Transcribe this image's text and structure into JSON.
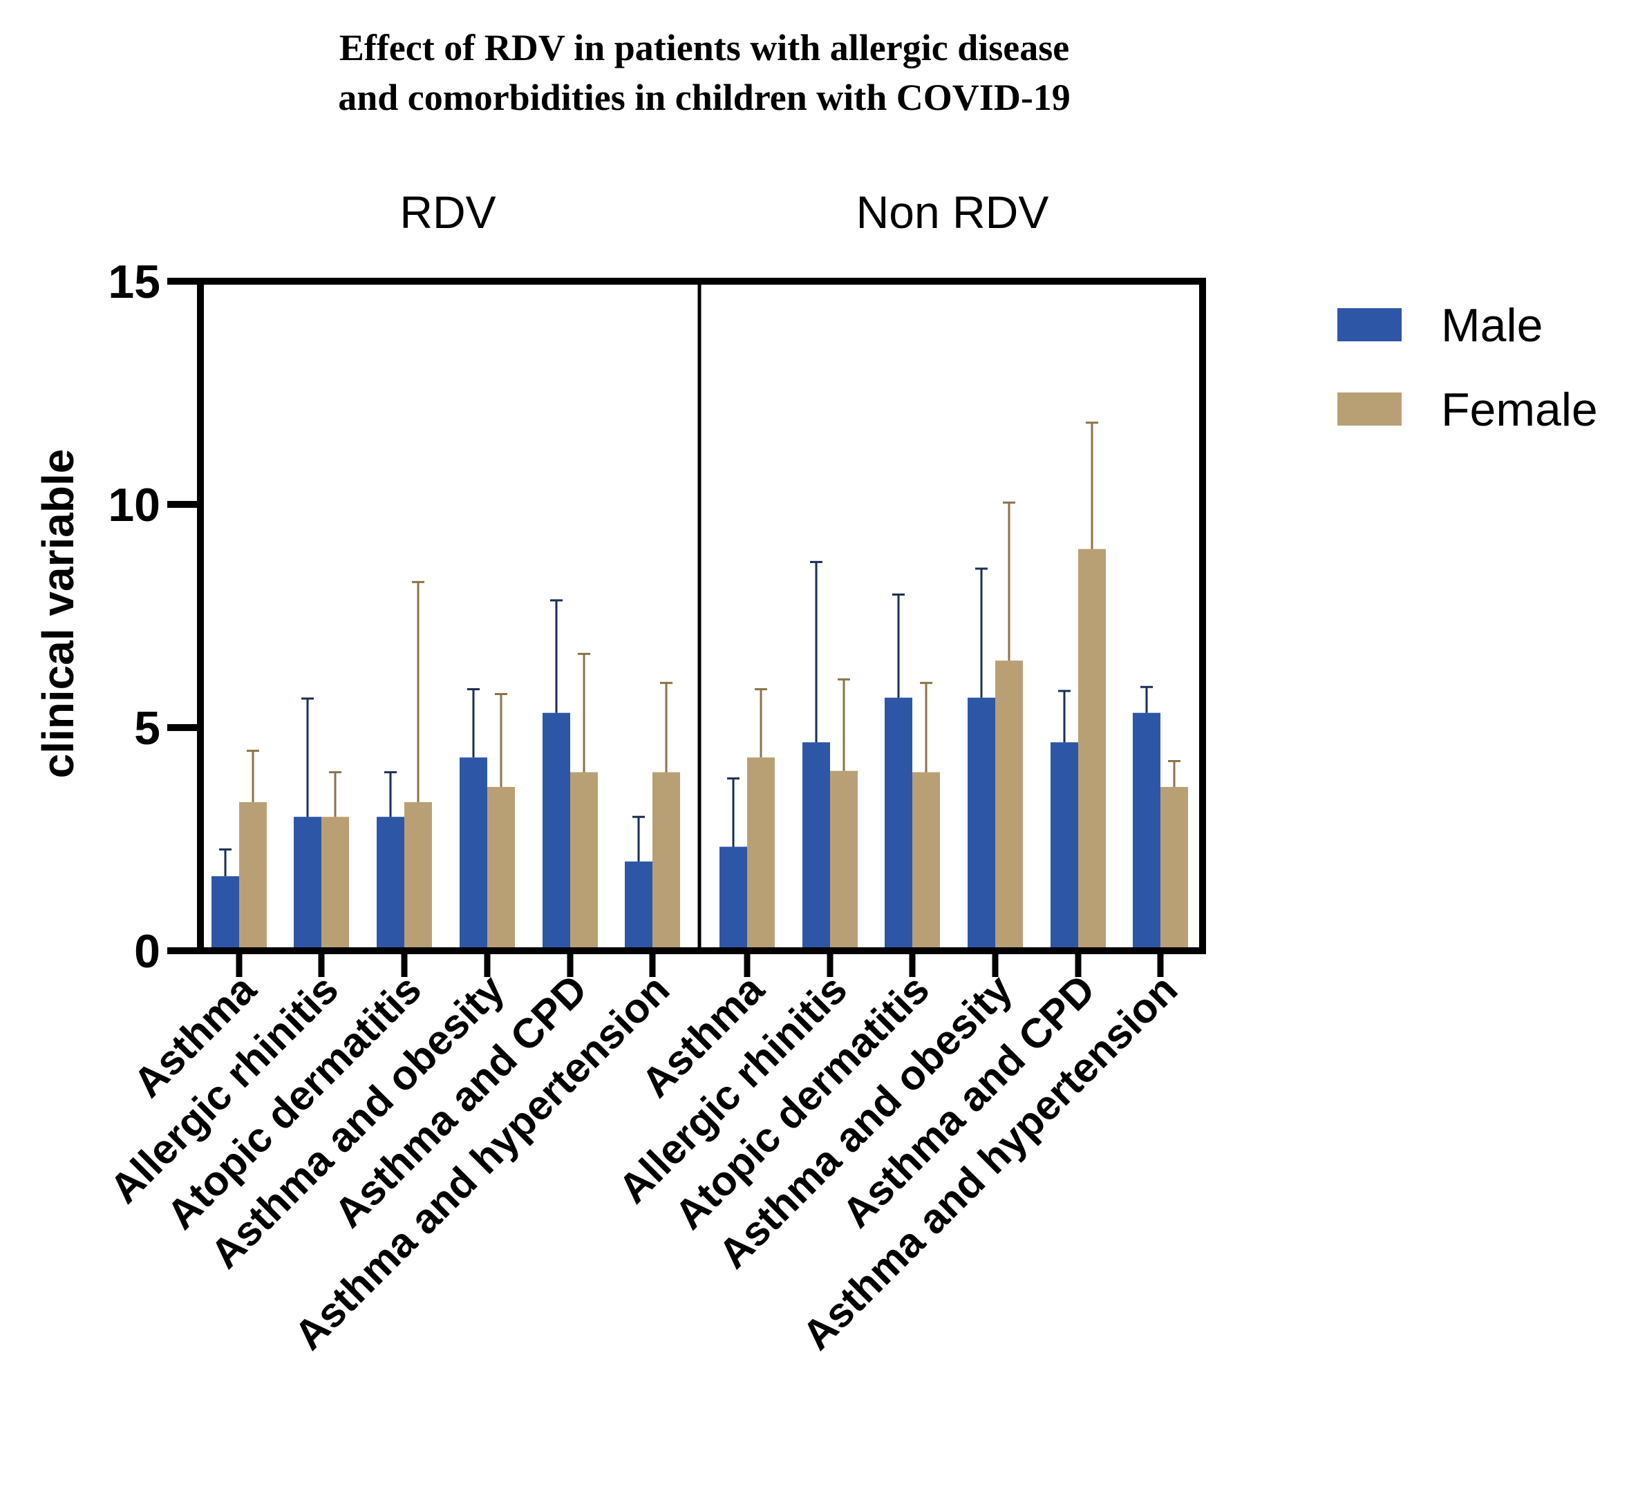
{
  "chart_data": {
    "type": "bar",
    "title_lines": [
      "Effect of RDV in patients with allergic disease",
      "and comorbidities in children with COVID-19"
    ],
    "ylabel": "clinical variable",
    "xlabel": "",
    "ylim": [
      0,
      15
    ],
    "yticks": [
      "0",
      "5",
      "10",
      "15"
    ],
    "groups": [
      {
        "label": "RDV",
        "categories": [
          "Asthma",
          "Allergic rhinitis",
          "Atopic dermatitis",
          "Asthma and obesity",
          "Asthma and CPD",
          "Asthma and hypertension"
        ],
        "series": [
          {
            "name": "Male",
            "values": [
              1.67,
              3.0,
              3.0,
              4.33,
              5.33,
              2.0
            ],
            "errors": [
              0.6,
              2.65,
              1.0,
              1.53,
              2.52,
              1.0
            ]
          },
          {
            "name": "Female",
            "values": [
              3.33,
              3.0,
              3.33,
              3.67,
              4.0,
              4.0
            ],
            "errors": [
              1.15,
              1.0,
              4.93,
              2.08,
              2.65,
              2.0
            ]
          }
        ]
      },
      {
        "label": "Non RDV",
        "categories": [
          "Asthma",
          "Allergic rhinitis",
          "Atopic dermatitis",
          "Asthma and obesity",
          "Asthma and CPD",
          "Asthma and hypertension"
        ],
        "series": [
          {
            "name": "Male",
            "values": [
              2.33,
              4.67,
              5.67,
              5.67,
              4.67,
              5.33
            ],
            "errors": [
              1.53,
              4.04,
              2.31,
              2.89,
              1.15,
              0.58
            ]
          },
          {
            "name": "Female",
            "values": [
              4.33,
              4.03,
              4.0,
              6.5,
              9.0,
              3.67
            ],
            "errors": [
              1.53,
              2.05,
              2.0,
              3.54,
              2.83,
              0.58
            ]
          }
        ]
      }
    ],
    "legend": [
      {
        "name": "Male",
        "color": "#2E56A6"
      },
      {
        "name": "Female",
        "color": "#B9A074"
      }
    ],
    "legend_position": "top-right",
    "grid": false
  }
}
